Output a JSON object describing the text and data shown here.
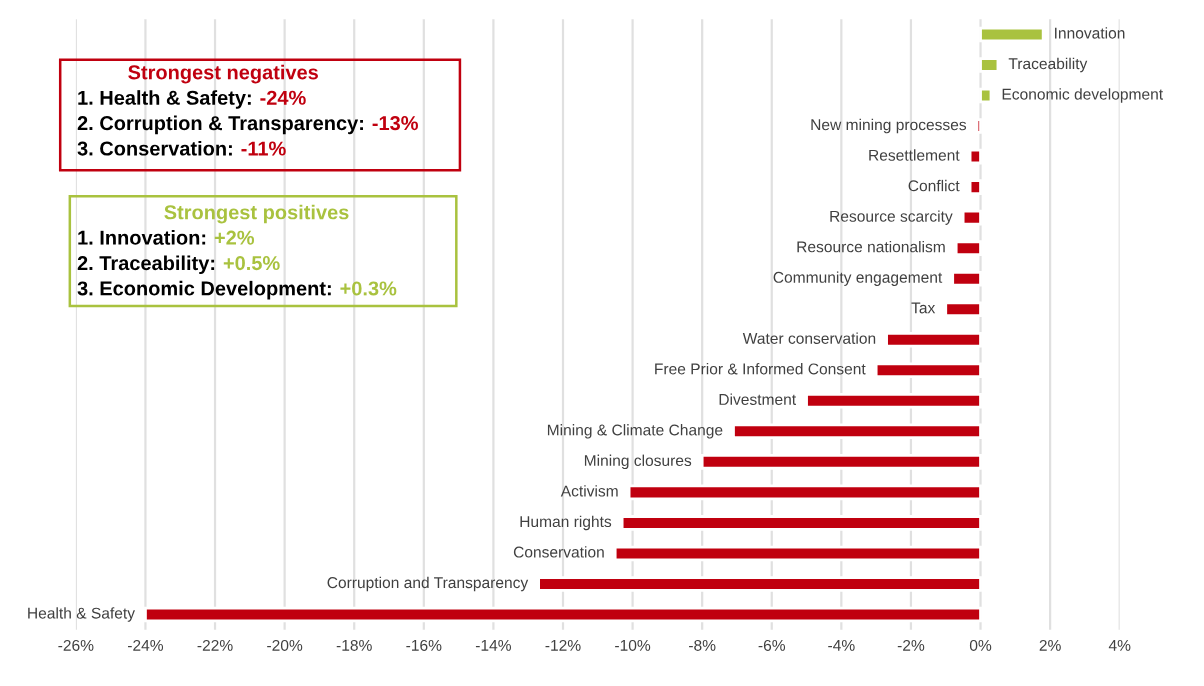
{
  "chart_data": {
    "type": "bar",
    "orientation": "horizontal",
    "categories": [
      "Innovation",
      "Traceability",
      "Economic development",
      "New mining processes",
      "Resettlement",
      "Conflict",
      "Resource scarcity",
      "Resource nationalism",
      "Community engagement",
      "Tax",
      "Water conservation",
      "Free Prior & Informed Consent",
      "Divestment",
      "Mining & Climate Change",
      "Mining closures",
      "Activism",
      "Human rights",
      "Conservation",
      "Corruption and Transparency",
      "Health & Safety"
    ],
    "values": [
      1.8,
      0.5,
      0.3,
      -0.1,
      -0.3,
      -0.3,
      -0.5,
      -0.7,
      -0.8,
      -1.0,
      -2.7,
      -3.0,
      -5.0,
      -7.1,
      -8.0,
      -10.1,
      -10.3,
      -10.5,
      -12.7,
      -24.0
    ],
    "colors": [
      "#a9c23f",
      "#a9c23f",
      "#a9c23f",
      "#c0000f",
      "#c0000f",
      "#c0000f",
      "#c0000f",
      "#c0000f",
      "#c0000f",
      "#c0000f",
      "#c0000f",
      "#c0000f",
      "#c0000f",
      "#c0000f",
      "#c0000f",
      "#c0000f",
      "#c0000f",
      "#c0000f",
      "#c0000f",
      "#c0000f"
    ],
    "xlim": [
      -26,
      4
    ],
    "xticks": [
      {
        "value": -26,
        "label": "-26%"
      },
      {
        "value": -24,
        "label": "-24%"
      },
      {
        "value": -22,
        "label": "-22%"
      },
      {
        "value": -20,
        "label": "-20%"
      },
      {
        "value": -18,
        "label": "-18%"
      },
      {
        "value": -16,
        "label": "-16%"
      },
      {
        "value": -14,
        "label": "-14%"
      },
      {
        "value": -12,
        "label": "-12%"
      },
      {
        "value": -10,
        "label": "-10%"
      },
      {
        "value": -8,
        "label": "-8%"
      },
      {
        "value": -6,
        "label": "-6%"
      },
      {
        "value": -4,
        "label": "-4%"
      },
      {
        "value": -2,
        "label": "-2%"
      },
      {
        "value": 0,
        "label": "0%"
      },
      {
        "value": 2,
        "label": "2%"
      },
      {
        "value": 4,
        "label": "4%"
      }
    ],
    "grid": "x",
    "tick_labels": "x",
    "annotations": [
      "Strongest negatives",
      "1. Health & Safety:",
      "-24%",
      "2. Corruption & Transparency:",
      "-13%",
      "3. Conservation:",
      "-11%",
      "Strongest positives",
      "1. Innovation:",
      "+2%",
      "2. Traceability:",
      "+0.5%",
      "3. Economic Development:",
      "+0.3%"
    ]
  }
}
